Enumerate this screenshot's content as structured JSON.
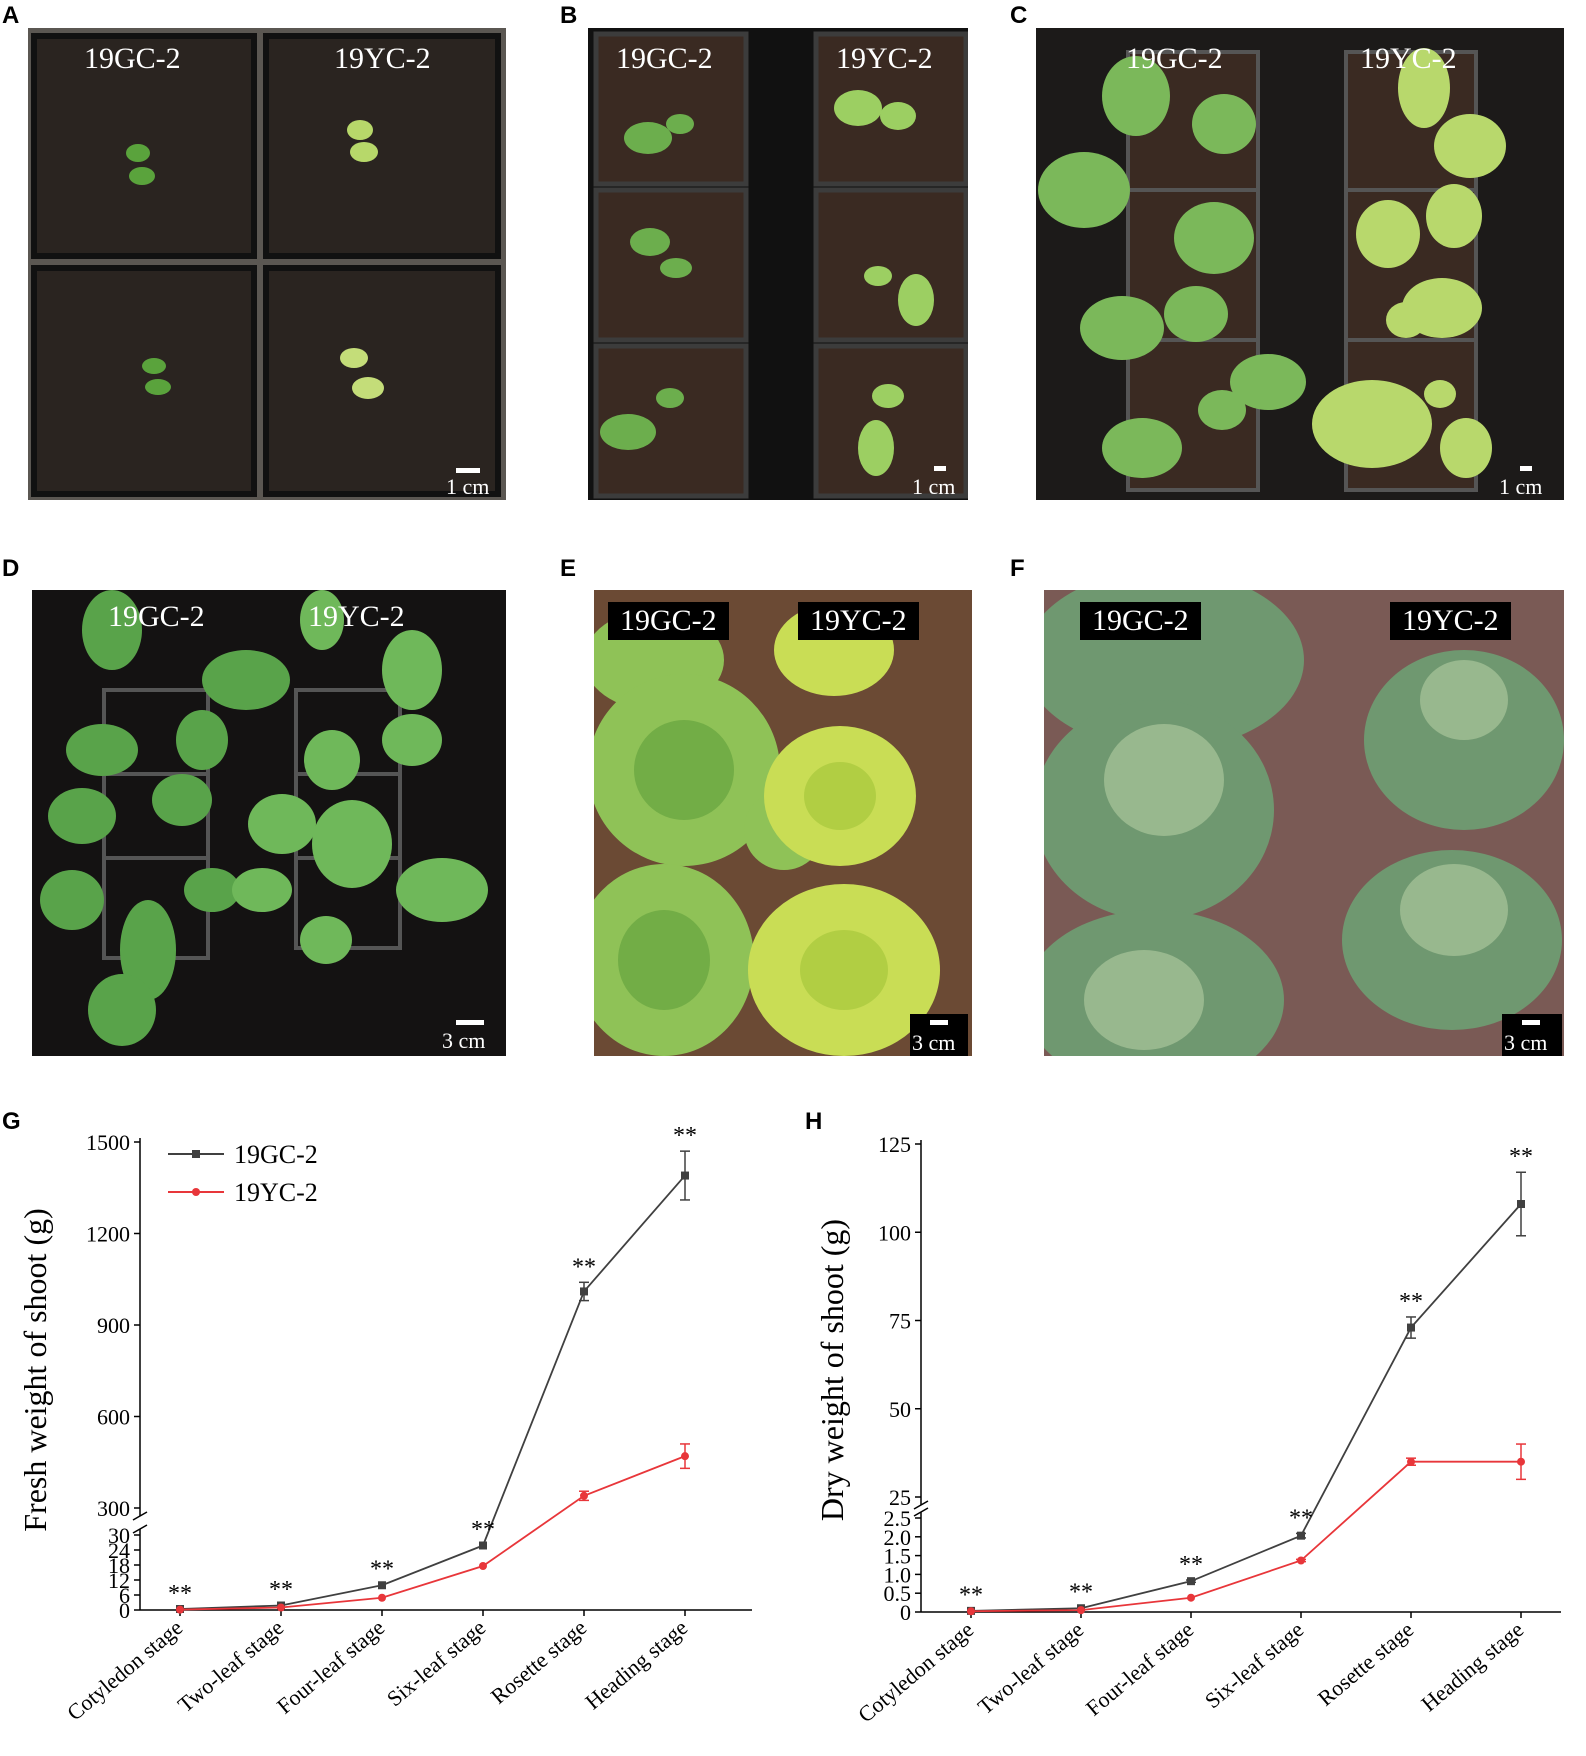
{
  "panels": {
    "A": {
      "letter": "A",
      "label_left": "19GC-2",
      "label_right": "19YC-2",
      "scale": "1 cm"
    },
    "B": {
      "letter": "B",
      "label_left": "19GC-2",
      "label_right": "19YC-2",
      "scale": "1 cm"
    },
    "C": {
      "letter": "C",
      "label_left": "19GC-2",
      "label_right": "19YC-2",
      "scale": "1 cm"
    },
    "D": {
      "letter": "D",
      "label_left": "19GC-2",
      "label_right": "19YC-2",
      "scale": "3 cm"
    },
    "E": {
      "letter": "E",
      "label_left": "19GC-2",
      "label_right": "19YC-2",
      "scale": "3 cm"
    },
    "F": {
      "letter": "F",
      "label_left": "19GC-2",
      "label_right": "19YC-2",
      "scale": "3 cm"
    },
    "G": {
      "letter": "G"
    },
    "H": {
      "letter": "H"
    }
  },
  "colors": {
    "series_gc": "#404040",
    "series_yc": "#e8363a"
  },
  "chart_data": [
    {
      "type": "line",
      "panel": "G",
      "title": "",
      "xlabel": "",
      "ylabel": "Fresh weight of shoot (g)",
      "categories": [
        "Cotyledon stage",
        "Two-leaf stage",
        "Four-leaf stage",
        "Six-leaf stage",
        "Rosette stage",
        "Heading stage"
      ],
      "y_axis_break": {
        "lower_range": [
          0,
          30
        ],
        "upper_range": [
          300,
          1500
        ]
      },
      "lower_ticks": [
        "0",
        "6",
        "12",
        "18",
        "24",
        "30"
      ],
      "upper_ticks": [
        "300",
        "600",
        "900",
        "1200",
        "1500"
      ],
      "legend_position": "top-left",
      "series": [
        {
          "name": "19GC-2",
          "values": [
            0.4,
            1.8,
            9.9,
            25.8,
            1010,
            1390
          ],
          "errors": [
            0.05,
            0.15,
            0.3,
            0.3,
            30,
            80
          ]
        },
        {
          "name": "19YC-2",
          "values": [
            0.15,
            1.0,
            4.9,
            17.6,
            340,
            470
          ],
          "errors": [
            0.03,
            0.1,
            0.2,
            0.3,
            15,
            40
          ]
        }
      ],
      "annotations": [
        "**",
        "**",
        "**",
        "**",
        "**",
        "**"
      ]
    },
    {
      "type": "line",
      "panel": "H",
      "title": "",
      "xlabel": "",
      "ylabel": "Dry weight of shoot (g)",
      "categories": [
        "Cotyledon stage",
        "Two-leaf stage",
        "Four-leaf stage",
        "Six-leaf stage",
        "Rosette stage",
        "Heading stage"
      ],
      "y_axis_break": {
        "lower_range": [
          0,
          2.5
        ],
        "upper_range": [
          25,
          125
        ]
      },
      "lower_ticks": [
        "0",
        "0.5",
        "1.0",
        "1.5",
        "2.0",
        "2.5"
      ],
      "upper_ticks": [
        "25",
        "50",
        "75",
        "100",
        "125"
      ],
      "legend_position": "none",
      "series": [
        {
          "name": "19GC-2",
          "values": [
            0.03,
            0.1,
            0.82,
            2.03,
            73,
            108
          ],
          "errors": [
            0.01,
            0.02,
            0.03,
            0.06,
            3,
            9
          ]
        },
        {
          "name": "19YC-2",
          "values": [
            0.02,
            0.05,
            0.38,
            1.37,
            35,
            35
          ],
          "errors": [
            0.01,
            0.01,
            0.02,
            0.03,
            1,
            5
          ]
        }
      ],
      "annotations": [
        "**",
        "**",
        "**",
        "**",
        "**",
        "**"
      ]
    }
  ]
}
